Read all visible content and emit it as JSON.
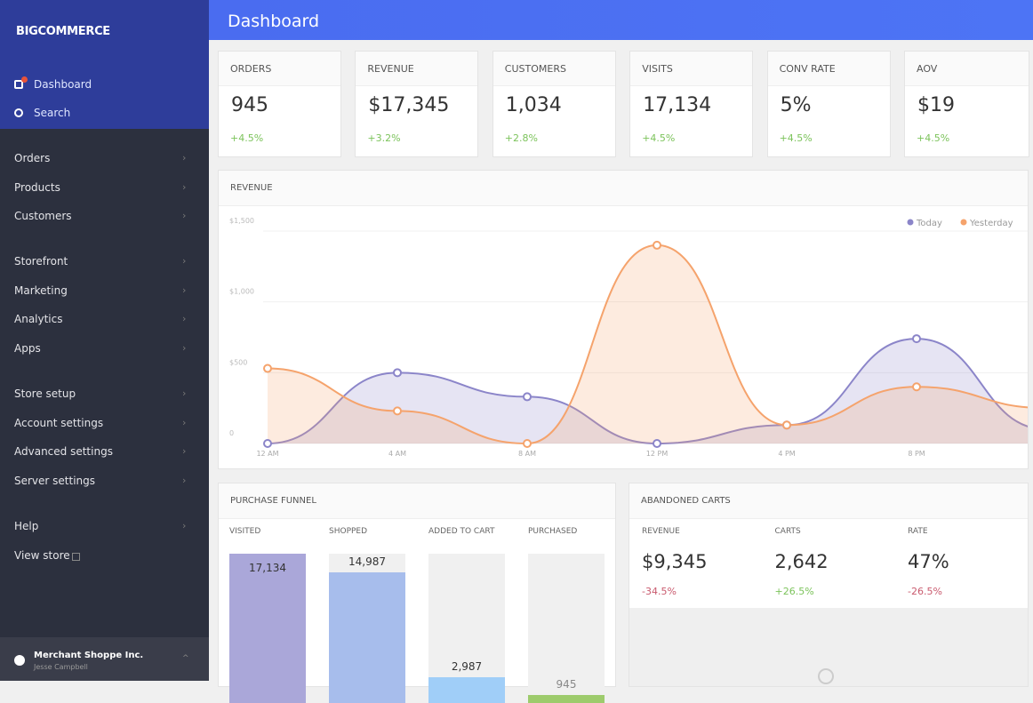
{
  "sidebar": {
    "logo": "BIGCOMMERCE",
    "top_nav": [
      "Dashboard",
      "Search"
    ],
    "nav_groups": [
      [
        "Orders",
        "Products",
        "Customers"
      ],
      [
        "Storefront",
        "Marketing",
        "Analytics",
        "Apps"
      ],
      [
        "Store setup",
        "Account settings",
        "Advanced settings",
        "Server settings"
      ],
      [
        "Help",
        "View store"
      ]
    ],
    "account": {
      "name": "Merchant Shoppe Inc.",
      "user": "Jesse Campbell"
    }
  },
  "header": {
    "title": "Dashboard"
  },
  "kpis": [
    {
      "label": "ORDERS",
      "value": "945",
      "change": "+4.5%"
    },
    {
      "label": "REVENUE",
      "value": "$17,345",
      "change": "+3.2%"
    },
    {
      "label": "CUSTOMERS",
      "value": "1,034",
      "change": "+2.8%"
    },
    {
      "label": "VISITS",
      "value": "17,134",
      "change": "+4.5%"
    },
    {
      "label": "CONV RATE",
      "value": "5%",
      "change": "+4.5%"
    },
    {
      "label": "AOV",
      "value": "$19",
      "change": "+4.5%"
    }
  ],
  "revenue_chart": {
    "type": "line",
    "title": "REVENUE",
    "categories": [
      "12 AM",
      "4 AM",
      "8 AM",
      "12 PM",
      "4 PM",
      "8 PM",
      null
    ],
    "series": [
      {
        "name": "Today",
        "color": "#8b85c9",
        "values": [
          0,
          500,
          330,
          0,
          130,
          740,
          100
        ]
      },
      {
        "name": "Yesterday",
        "color": "#f5a36c",
        "values": [
          530,
          230,
          0,
          1400,
          130,
          400,
          250
        ]
      }
    ],
    "ylim": [
      0,
      1500
    ],
    "yticks": [
      0,
      {
        "value": 500,
        "label": "$500"
      },
      {
        "value": 1000,
        "label": "$1,000"
      },
      {
        "value": 1500,
        "label": "$1,500"
      }
    ],
    "grid": true,
    "legend": "top-right"
  },
  "funnel": {
    "title": "PURCHASE FUNNEL",
    "stages": [
      "VISITED",
      "SHOPPED",
      "ADDED TO CART",
      "PURCHASED"
    ],
    "values": [
      17134,
      14987,
      2987,
      945
    ],
    "value_labels": [
      "17,134",
      "14,987",
      "2,987",
      "945"
    ],
    "colors": [
      "#aaa7d9",
      "#a7bdec",
      "#a0cef8",
      "#9dcb6c"
    ]
  },
  "abandoned_carts": {
    "title": "ABANDONED CARTS",
    "metrics": [
      {
        "label": "REVENUE",
        "value": "$9,345",
        "change": "-34.5%"
      },
      {
        "label": "CARTS",
        "value": "2,642",
        "change": "+26.5%"
      },
      {
        "label": "RATE",
        "value": "47%",
        "change": "-26.5%"
      }
    ]
  }
}
